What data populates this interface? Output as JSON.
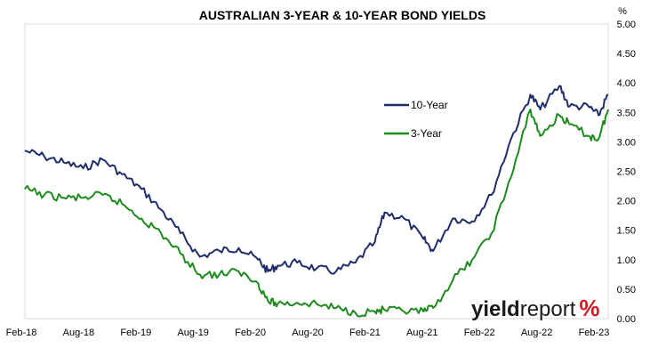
{
  "chart_data": {
    "type": "line",
    "title": "AUSTRALIAN 3-YEAR & 10-YEAR BOND YIELDS",
    "unit_label": "%",
    "xlabel": "",
    "ylabel": "",
    "ylim": [
      0,
      5
    ],
    "y_ticks": [
      "0.00",
      "0.50",
      "1.00",
      "1.50",
      "2.00",
      "2.50",
      "3.00",
      "3.50",
      "4.00",
      "4.50",
      "5.00"
    ],
    "x_ticks": [
      "Feb-18",
      "Aug-18",
      "Feb-19",
      "Aug-19",
      "Feb-20",
      "Aug-20",
      "Feb-21",
      "Aug-21",
      "Feb-22",
      "Aug-22",
      "Feb-23"
    ],
    "x_range": [
      "2018-02",
      "2023-02"
    ],
    "grid": false,
    "legend_position": "upper-middle-right",
    "x": [
      "2018-02",
      "2018-04",
      "2018-06",
      "2018-08",
      "2018-10",
      "2018-12",
      "2019-02",
      "2019-04",
      "2019-06",
      "2019-08",
      "2019-10",
      "2019-12",
      "2020-02",
      "2020-03",
      "2020-04",
      "2020-06",
      "2020-08",
      "2020-10",
      "2020-12",
      "2021-02",
      "2021-03",
      "2021-05",
      "2021-07",
      "2021-08",
      "2021-10",
      "2021-12",
      "2022-02",
      "2022-04",
      "2022-06",
      "2022-07",
      "2022-09",
      "2022-10",
      "2022-12",
      "2023-01",
      "2023-02"
    ],
    "series": [
      {
        "name": "10-Year",
        "color": "#1f2d6b",
        "values": [
          2.85,
          2.75,
          2.65,
          2.55,
          2.7,
          2.45,
          2.2,
          1.85,
          1.45,
          1.05,
          1.15,
          1.2,
          1.0,
          0.8,
          0.9,
          0.95,
          0.85,
          0.8,
          0.95,
          1.3,
          1.8,
          1.7,
          1.35,
          1.15,
          1.7,
          1.65,
          2.1,
          3.05,
          3.8,
          3.55,
          3.95,
          3.6,
          3.6,
          3.45,
          3.8
        ]
      },
      {
        "name": "3-Year",
        "color": "#1e8b1e",
        "values": [
          2.2,
          2.1,
          2.05,
          2.05,
          2.1,
          1.95,
          1.7,
          1.45,
          1.1,
          0.75,
          0.75,
          0.8,
          0.6,
          0.3,
          0.25,
          0.27,
          0.25,
          0.18,
          0.1,
          0.12,
          0.15,
          0.12,
          0.12,
          0.18,
          0.65,
          1.0,
          1.45,
          2.4,
          3.55,
          3.1,
          3.45,
          3.3,
          3.1,
          3.05,
          3.55
        ]
      }
    ]
  },
  "watermark": {
    "part_bold": "yield",
    "part_regular": "report",
    "symbol": "%",
    "symbol_color": "#d71920"
  }
}
